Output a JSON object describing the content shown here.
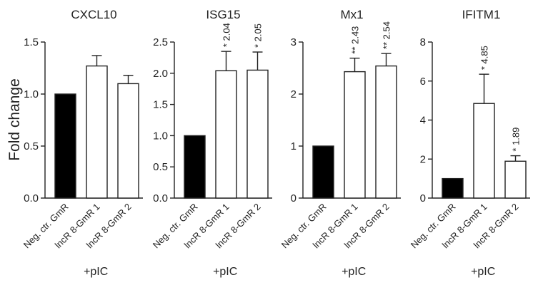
{
  "y_axis_label": "Fold change",
  "colors": {
    "control": "#000000",
    "treated": "#ffffff",
    "stroke": "#222222"
  },
  "chart_data": [
    {
      "type": "bar",
      "title": "CXCL10",
      "categories": [
        "Neg. ctr. GmR",
        "lncR 8-GmR 1",
        "lncR 8-GmR 2"
      ],
      "values": [
        1.0,
        1.27,
        1.1
      ],
      "errors": [
        0,
        0.1,
        0.08
      ],
      "annotations": [
        "",
        "",
        ""
      ],
      "ylim": [
        0,
        1.5
      ],
      "yticks": [
        0.0,
        0.5,
        1.0,
        1.5
      ],
      "ytick_labels": [
        "0.0",
        "0.5",
        "1.0",
        "1.5"
      ],
      "group_label": "+pIC"
    },
    {
      "type": "bar",
      "title": "ISG15",
      "categories": [
        "Neg. ctr. GmR",
        "lncR 8-GmR 1",
        "lncR 8-GmR 2"
      ],
      "values": [
        1.0,
        2.04,
        2.05
      ],
      "errors": [
        0,
        0.31,
        0.29
      ],
      "annotations": [
        "",
        "* 2.04",
        "* 2.05"
      ],
      "ylim": [
        0,
        2.5
      ],
      "yticks": [
        0.0,
        0.5,
        1.0,
        1.5,
        2.0,
        2.5
      ],
      "ytick_labels": [
        "0.0",
        "0.5",
        "1.0",
        "1.5",
        "2.0",
        "2.5"
      ],
      "group_label": "+pIC"
    },
    {
      "type": "bar",
      "title": "Mx1",
      "categories": [
        "Neg. ctr. GmR",
        "lncR 8-GmR 1",
        "lncR 8-GmR 2"
      ],
      "values": [
        1.0,
        2.43,
        2.54
      ],
      "errors": [
        0,
        0.26,
        0.24
      ],
      "annotations": [
        "",
        "** 2.43",
        "** 2.54"
      ],
      "ylim": [
        0,
        3
      ],
      "yticks": [
        0,
        1,
        2,
        3
      ],
      "ytick_labels": [
        "0",
        "1",
        "2",
        "3"
      ],
      "group_label": "+pIC"
    },
    {
      "type": "bar",
      "title": "IFITM1",
      "categories": [
        "Neg. ctr. GmR",
        "lncR 8-GmR 1",
        "lncR 8-GmR 2"
      ],
      "values": [
        1.0,
        4.85,
        1.89
      ],
      "errors": [
        0,
        1.5,
        0.28
      ],
      "annotations": [
        "",
        "* 4.85",
        "* 1.89"
      ],
      "ylim": [
        0,
        8
      ],
      "yticks": [
        0,
        2,
        4,
        6,
        8
      ],
      "ytick_labels": [
        "0",
        "2",
        "4",
        "6",
        "8"
      ],
      "group_label": "+pIC"
    }
  ]
}
